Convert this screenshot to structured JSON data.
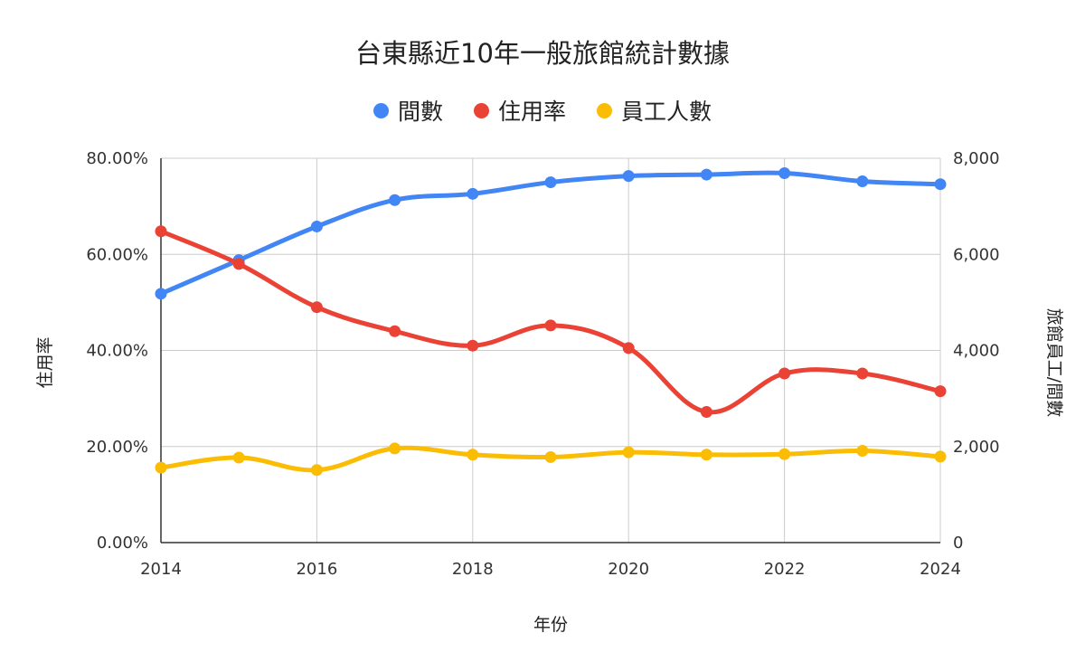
{
  "chart_data": {
    "type": "line",
    "title": "台東縣近10年一般旅館統計數據",
    "xlabel": "年份",
    "ylabel_left": "住用率",
    "ylabel_right": "旅館員工/間數",
    "x": [
      2014,
      2015,
      2016,
      2017,
      2018,
      2019,
      2020,
      2021,
      2022,
      2023,
      2024
    ],
    "x_ticks": [
      "2014",
      "2016",
      "2018",
      "2020",
      "2022",
      "2024"
    ],
    "y_left_ticks": [
      "0.00%",
      "20.00%",
      "40.00%",
      "60.00%",
      "80.00%"
    ],
    "y_right_ticks": [
      "0",
      "2,000",
      "4,000",
      "6,000",
      "8,000"
    ],
    "ylim_left": [
      0,
      80
    ],
    "ylim_right": [
      0,
      8000
    ],
    "grid": true,
    "legend_position": "top",
    "series": [
      {
        "name": "間數",
        "axis": "right",
        "color": "#4285f4",
        "values": [
          5180,
          5880,
          6580,
          7130,
          7260,
          7500,
          7630,
          7660,
          7690,
          7520,
          7460
        ]
      },
      {
        "name": "住用率",
        "axis": "left",
        "color": "#ea4335",
        "values": [
          64.8,
          58.0,
          49.0,
          44.0,
          41.0,
          45.2,
          40.5,
          27.2,
          35.2,
          35.2,
          31.5
        ]
      },
      {
        "name": "員工人數",
        "axis": "right",
        "color": "#fbbc04",
        "values": [
          1560,
          1770,
          1510,
          1960,
          1830,
          1780,
          1880,
          1830,
          1840,
          1910,
          1790
        ]
      }
    ]
  }
}
